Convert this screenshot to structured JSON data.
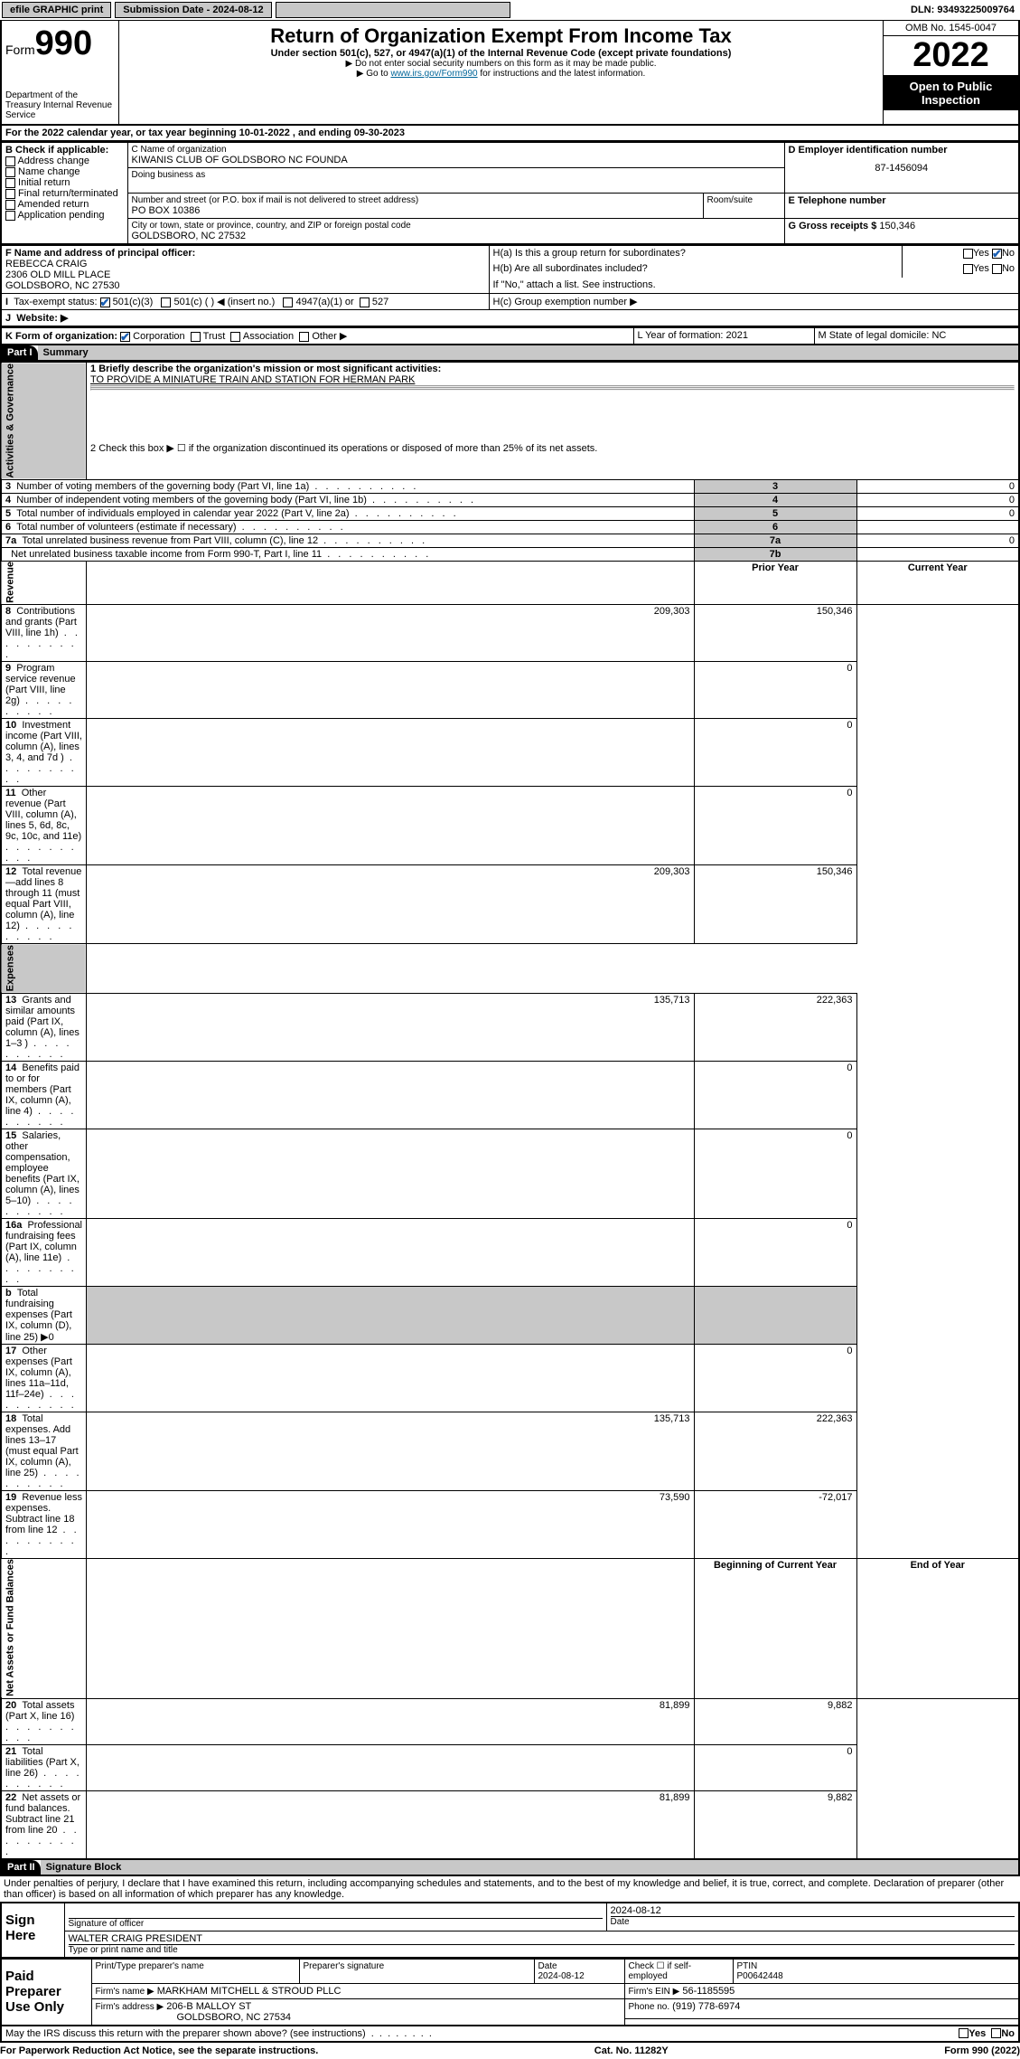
{
  "topbar": {
    "efile": "efile GRAPHIC print",
    "submission_label": "Submission Date - 2024-08-12",
    "dln_label": "DLN: 93493225009764"
  },
  "header": {
    "form_word": "Form",
    "form_num": "990",
    "dept": "Department of the Treasury Internal Revenue Service",
    "title": "Return of Organization Exempt From Income Tax",
    "sub": "Under section 501(c), 527, or 4947(a)(1) of the Internal Revenue Code (except private foundations)",
    "note1": "▶ Do not enter social security numbers on this form as it may be made public.",
    "note2": "▶ Go to www.irs.gov/Form990 for instructions and the latest information.",
    "omb": "OMB No. 1545-0047",
    "year": "2022",
    "open": "Open to Public Inspection"
  },
  "A": {
    "text": "For the 2022 calendar year, or tax year beginning 10-01-2022   , and ending 09-30-2023"
  },
  "B": {
    "label": "B Check if applicable:",
    "items": [
      "Address change",
      "Name change",
      "Initial return",
      "Final return/terminated",
      "Amended return",
      "Application pending"
    ]
  },
  "C": {
    "name_label": "C Name of organization",
    "name": "KIWANIS CLUB OF GOLDSBORO NC FOUNDA",
    "dba_label": "Doing business as",
    "addr_label": "Number and street (or P.O. box if mail is not delivered to street address)",
    "room_label": "Room/suite",
    "addr": "PO BOX 10386",
    "city_label": "City or town, state or province, country, and ZIP or foreign postal code",
    "city": "GOLDSBORO, NC  27532"
  },
  "D": {
    "label": "D Employer identification number",
    "val": "87-1456094"
  },
  "E": {
    "label": "E Telephone number",
    "val": ""
  },
  "G": {
    "label": "G Gross receipts $",
    "val": "150,346"
  },
  "F": {
    "label": "F Name and address of principal officer:",
    "name": "REBECCA CRAIG",
    "addr1": "2306 OLD MILL PLACE",
    "addr2": "GOLDSBORO, NC  27530"
  },
  "H": {
    "a": "H(a)  Is this a group return for subordinates?",
    "b": "H(b)  Are all subordinates included?",
    "b_note": "If \"No,\" attach a list. See instructions.",
    "c": "H(c)  Group exemption number ▶",
    "yes": "Yes",
    "no": "No"
  },
  "I": {
    "label": "Tax-exempt status:",
    "opts": [
      "501(c)(3)",
      "501(c) (  ) ◀ (insert no.)",
      "4947(a)(1) or",
      "527"
    ]
  },
  "J": {
    "label": "Website: ▶"
  },
  "K": {
    "label": "K Form of organization:",
    "opts": [
      "Corporation",
      "Trust",
      "Association",
      "Other ▶"
    ]
  },
  "L": {
    "label": "L Year of formation: 2021"
  },
  "M": {
    "label": "M State of legal domicile: NC"
  },
  "part1": {
    "bar": "Part I",
    "title": "Summary",
    "line1_label": "1  Briefly describe the organization's mission or most significant activities:",
    "line1_text": "TO PROVIDE A MINIATURE TRAIN AND STATION FOR HERMAN PARK",
    "line2": "2   Check this box ▶ ☐  if the organization discontinued its operations or disposed of more than 25% of its net assets.",
    "rows_gov": [
      {
        "n": "3",
        "t": "Number of voting members of the governing body (Part VI, line 1a)",
        "c": "3",
        "v": "0"
      },
      {
        "n": "4",
        "t": "Number of independent voting members of the governing body (Part VI, line 1b)",
        "c": "4",
        "v": "0"
      },
      {
        "n": "5",
        "t": "Total number of individuals employed in calendar year 2022 (Part V, line 2a)",
        "c": "5",
        "v": "0"
      },
      {
        "n": "6",
        "t": "Total number of volunteers (estimate if necessary)",
        "c": "6",
        "v": ""
      },
      {
        "n": "7a",
        "t": "Total unrelated business revenue from Part VIII, column (C), line 12",
        "c": "7a",
        "v": "0"
      },
      {
        "n": "",
        "t": "Net unrelated business taxable income from Form 990-T, Part I, line 11",
        "c": "7b",
        "v": ""
      }
    ],
    "col_prior": "Prior Year",
    "col_curr": "Current Year",
    "rev_rows": [
      {
        "n": "8",
        "t": "Contributions and grants (Part VIII, line 1h)",
        "p": "209,303",
        "c": "150,346"
      },
      {
        "n": "9",
        "t": "Program service revenue (Part VIII, line 2g)",
        "p": "",
        "c": "0"
      },
      {
        "n": "10",
        "t": "Investment income (Part VIII, column (A), lines 3, 4, and 7d )",
        "p": "",
        "c": "0"
      },
      {
        "n": "11",
        "t": "Other revenue (Part VIII, column (A), lines 5, 6d, 8c, 9c, 10c, and 11e)",
        "p": "",
        "c": "0"
      },
      {
        "n": "12",
        "t": "Total revenue—add lines 8 through 11 (must equal Part VIII, column (A), line 12)",
        "p": "209,303",
        "c": "150,346"
      }
    ],
    "exp_rows": [
      {
        "n": "13",
        "t": "Grants and similar amounts paid (Part IX, column (A), lines 1–3 )",
        "p": "135,713",
        "c": "222,363"
      },
      {
        "n": "14",
        "t": "Benefits paid to or for members (Part IX, column (A), line 4)",
        "p": "",
        "c": "0"
      },
      {
        "n": "15",
        "t": "Salaries, other compensation, employee benefits (Part IX, column (A), lines 5–10)",
        "p": "",
        "c": "0"
      },
      {
        "n": "16a",
        "t": "Professional fundraising fees (Part IX, column (A), line 11e)",
        "p": "",
        "c": "0"
      },
      {
        "n": "b",
        "t": "Total fundraising expenses (Part IX, column (D), line 25) ▶0",
        "p": "—",
        "c": "—"
      },
      {
        "n": "17",
        "t": "Other expenses (Part IX, column (A), lines 11a–11d, 11f–24e)",
        "p": "",
        "c": "0"
      },
      {
        "n": "18",
        "t": "Total expenses. Add lines 13–17 (must equal Part IX, column (A), line 25)",
        "p": "135,713",
        "c": "222,363"
      },
      {
        "n": "19",
        "t": "Revenue less expenses. Subtract line 18 from line 12",
        "p": "73,590",
        "c": "-72,017"
      }
    ],
    "col_beg": "Beginning of Current Year",
    "col_end": "End of Year",
    "net_rows": [
      {
        "n": "20",
        "t": "Total assets (Part X, line 16)",
        "p": "81,899",
        "c": "9,882"
      },
      {
        "n": "21",
        "t": "Total liabilities (Part X, line 26)",
        "p": "",
        "c": "0"
      },
      {
        "n": "22",
        "t": "Net assets or fund balances. Subtract line 21 from line 20",
        "p": "81,899",
        "c": "9,882"
      }
    ]
  },
  "part2": {
    "bar": "Part II",
    "title": "Signature Block",
    "decl": "Under penalties of perjury, I declare that I have examined this return, including accompanying schedules and statements, and to the best of my knowledge and belief, it is true, correct, and complete. Declaration of preparer (other than officer) is based on all information of which preparer has any knowledge.",
    "sign_here": "Sign Here",
    "sig_officer": "Signature of officer",
    "date": "Date",
    "date_val": "2024-08-12",
    "officer_name": "WALTER CRAIG  PRESIDENT",
    "officer_sub": "Type or print name and title",
    "paid": "Paid Preparer Use Only",
    "prep_name_lbl": "Print/Type preparer's name",
    "prep_sig_lbl": "Preparer's signature",
    "prep_date": "2024-08-12",
    "check_self": "Check ☐ if self-employed",
    "ptin_lbl": "PTIN",
    "ptin": "P00642448",
    "firm_name_lbl": "Firm's name    ▶",
    "firm_name": "MARKHAM MITCHELL & STROUD PLLC",
    "firm_ein_lbl": "Firm's EIN ▶",
    "firm_ein": "56-1185595",
    "firm_addr_lbl": "Firm's address ▶",
    "firm_addr": "206-B MALLOY ST",
    "firm_city": "GOLDSBORO, NC  27534",
    "phone_lbl": "Phone no.",
    "phone": "(919) 778-6974",
    "may_irs": "May the IRS discuss this return with the preparer shown above? (see instructions)"
  },
  "footer": {
    "left": "For Paperwork Reduction Act Notice, see the separate instructions.",
    "mid": "Cat. No. 11282Y",
    "right": "Form 990 (2022)"
  },
  "side_labels": {
    "gov": "Activities & Governance",
    "rev": "Revenue",
    "exp": "Expenses",
    "net": "Net Assets or Fund Balances"
  }
}
